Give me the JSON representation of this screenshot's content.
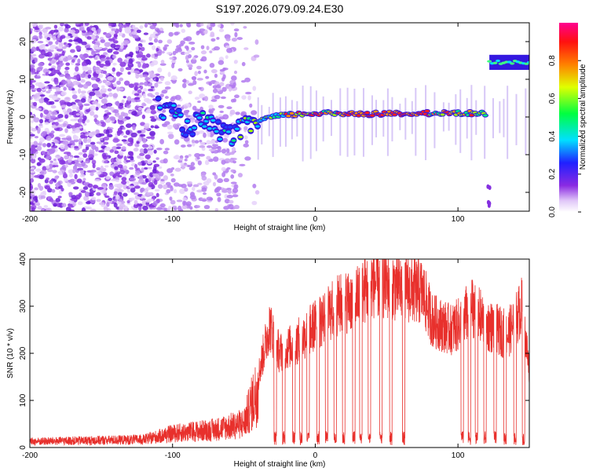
{
  "title": "S197.2026.079.09.24.E30",
  "chart_data": [
    {
      "type": "heatmap",
      "xlabel": "Height of straight line (km)",
      "ylabel": "Frequency (Hz)",
      "xlim": [
        -200,
        150
      ],
      "ylim": [
        -25,
        25
      ],
      "xticks": [
        -200,
        -100,
        0,
        100
      ],
      "yticks": [
        -20,
        -10,
        0,
        10,
        20
      ],
      "colorbar": {
        "label": "Normalized spectral amplitude",
        "range": [
          0,
          1
        ],
        "ticks": [
          "0.0",
          "0.2",
          "0.4",
          "0.6",
          "0.8"
        ]
      },
      "track": [
        {
          "x": -110,
          "freq": 3
        },
        {
          "x": -100,
          "freq": 1
        },
        {
          "x": -90,
          "freq": -3
        },
        {
          "x": -80,
          "freq": -1
        },
        {
          "x": -70,
          "freq": -3
        },
        {
          "x": -60,
          "freq": -5
        },
        {
          "x": -50,
          "freq": -3
        },
        {
          "x": -40,
          "freq": -1
        },
        {
          "x": -30,
          "freq": 0
        },
        {
          "x": -20,
          "freq": 0.5
        },
        {
          "x": 0,
          "freq": 1
        },
        {
          "x": 40,
          "freq": 0.8
        },
        {
          "x": 80,
          "freq": 1
        },
        {
          "x": 110,
          "freq": 1
        },
        {
          "x": 120,
          "freq": 1
        }
      ],
      "track_upper": {
        "x_start": 122,
        "x_end": 150,
        "freq": 14.5
      }
    },
    {
      "type": "line",
      "xlabel": "Height of straight line (km)",
      "ylabel": "SNR (10 * v/v)",
      "xlim": [
        -200,
        150
      ],
      "ylim": [
        0,
        400
      ],
      "xticks": [
        -200,
        -100,
        0,
        100
      ],
      "yticks": [
        0,
        100,
        200,
        300,
        400
      ],
      "color": "#e8302c",
      "envelope": [
        {
          "x": -200,
          "level": 15
        },
        {
          "x": -120,
          "level": 20
        },
        {
          "x": -100,
          "level": 35
        },
        {
          "x": -70,
          "level": 45
        },
        {
          "x": -50,
          "level": 60
        },
        {
          "x": -40,
          "level": 150
        },
        {
          "x": -32,
          "level": 260
        },
        {
          "x": -25,
          "level": 200
        },
        {
          "x": -10,
          "level": 230
        },
        {
          "x": 0,
          "level": 260
        },
        {
          "x": 15,
          "level": 300
        },
        {
          "x": 30,
          "level": 320
        },
        {
          "x": 40,
          "level": 350
        },
        {
          "x": 60,
          "level": 340
        },
        {
          "x": 75,
          "level": 330
        },
        {
          "x": 82,
          "level": 270
        },
        {
          "x": 95,
          "level": 250
        },
        {
          "x": 100,
          "level": 260
        },
        {
          "x": 110,
          "level": 300
        },
        {
          "x": 120,
          "level": 260
        },
        {
          "x": 135,
          "level": 240
        },
        {
          "x": 145,
          "level": 300
        },
        {
          "x": 150,
          "level": 160
        }
      ],
      "dropouts": [
        -28,
        -22,
        -15,
        -10,
        -5,
        2,
        8,
        14,
        20,
        27,
        32,
        38,
        46,
        53,
        62,
        103,
        108,
        113,
        119,
        126,
        133,
        140,
        146
      ]
    }
  ]
}
